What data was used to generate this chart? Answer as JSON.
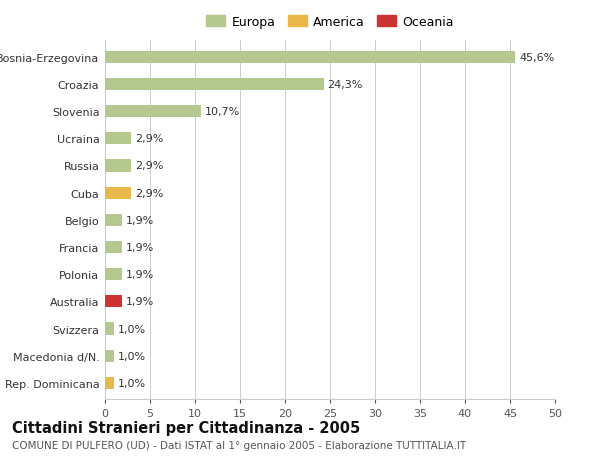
{
  "countries": [
    "Bosnia-Erzegovina",
    "Croazia",
    "Slovenia",
    "Ucraina",
    "Russia",
    "Cuba",
    "Belgio",
    "Francia",
    "Polonia",
    "Australia",
    "Svizzera",
    "Macedonia d/N.",
    "Rep. Dominicana"
  ],
  "values": [
    45.6,
    24.3,
    10.7,
    2.9,
    2.9,
    2.9,
    1.9,
    1.9,
    1.9,
    1.9,
    1.0,
    1.0,
    1.0
  ],
  "labels": [
    "45,6%",
    "24,3%",
    "10,7%",
    "2,9%",
    "2,9%",
    "2,9%",
    "1,9%",
    "1,9%",
    "1,9%",
    "1,9%",
    "1,0%",
    "1,0%",
    "1,0%"
  ],
  "colors": [
    "#b5c98e",
    "#b5c98e",
    "#b5c98e",
    "#b5c98e",
    "#b5c98e",
    "#e8b84b",
    "#b5c98e",
    "#b5c98e",
    "#b5c98e",
    "#cc3333",
    "#b5c98e",
    "#b5c98e",
    "#e8b84b"
  ],
  "legend_labels": [
    "Europa",
    "America",
    "Oceania"
  ],
  "legend_colors": [
    "#b5c98e",
    "#e8b84b",
    "#cc3333"
  ],
  "title": "Cittadini Stranieri per Cittadinanza - 2005",
  "subtitle": "COMUNE DI PULFERO (UD) - Dati ISTAT al 1° gennaio 2005 - Elaborazione TUTTITALIA.IT",
  "xlim": [
    0,
    50
  ],
  "xticks": [
    0,
    5,
    10,
    15,
    20,
    25,
    30,
    35,
    40,
    45,
    50
  ],
  "bg_color": "#ffffff",
  "grid_color": "#cccccc",
  "bar_height": 0.45,
  "label_fontsize": 8,
  "tick_fontsize": 8,
  "title_fontsize": 10.5,
  "subtitle_fontsize": 7.5,
  "legend_fontsize": 9
}
